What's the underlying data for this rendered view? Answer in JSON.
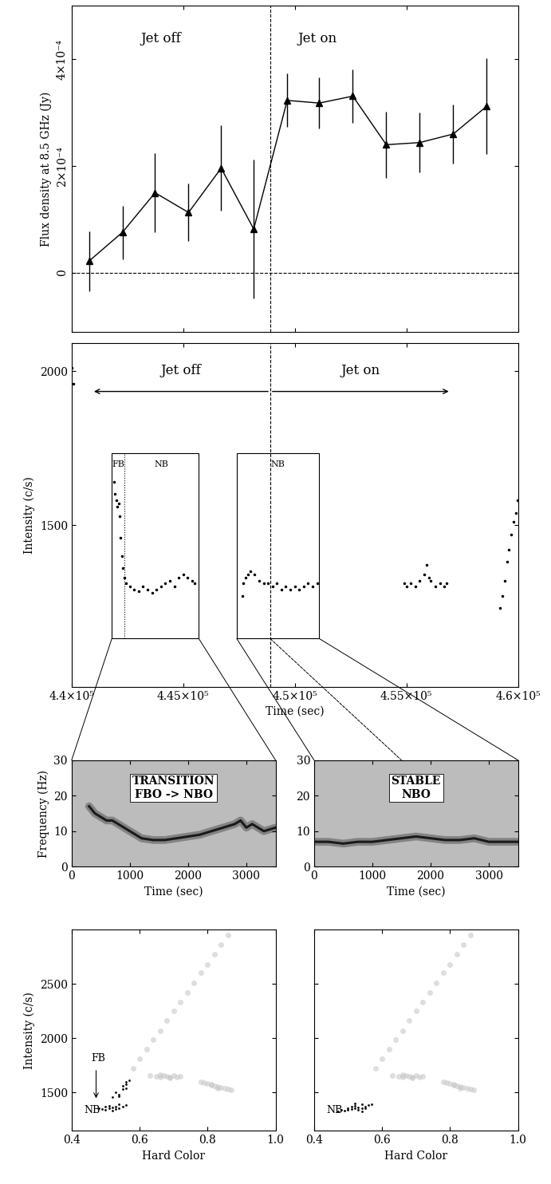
{
  "chart_data": [
    {
      "type": "errorbar_line",
      "ylabel": "Flux density at 8.5 GHz (Jy)",
      "color": "#000000",
      "marker": "^",
      "line_style": "solid",
      "x": [
        440780,
        442280,
        443740,
        445240,
        446700,
        448160,
        449660,
        451100,
        452600,
        454100,
        455600,
        457100,
        458600
      ],
      "values": [
        2.2e-05,
        7.6e-05,
        0.00015,
        0.000113,
        0.000196,
        8.2e-05,
        0.000323,
        0.000318,
        0.000331,
        0.00024,
        0.000244,
        0.00026,
        0.000312
      ],
      "errors": [
        5.6e-05,
        5e-05,
        7.4e-05,
        5.4e-05,
        8e-05,
        0.00013,
        5e-05,
        4.8e-05,
        5e-05,
        6.2e-05,
        5.6e-05,
        5.6e-05,
        9e-05
      ],
      "xlim": [
        440000,
        460000
      ],
      "xticks": [
        440000,
        445000,
        450000,
        455000,
        460000
      ],
      "ylim": [
        -0.00011,
        0.0005
      ],
      "yticks": [
        0,
        {
          "value": 0.0002,
          "label": "2×10⁻⁴"
        },
        {
          "value": 0.0004,
          "label": "4×10⁻⁴"
        }
      ],
      "tick_labels": "y",
      "vlines": [
        448900
      ],
      "hlines": [
        0
      ],
      "annotations": [
        "Jet off",
        "Jet on"
      ]
    },
    {
      "type": "scatter",
      "xlabel": "Time (sec)",
      "ylabel": "Intensity (c/s)",
      "color": "#000000",
      "marker": ".",
      "line_style": "none",
      "x": [
        440020,
        440060,
        null,
        441900,
        441950,
        442000,
        442050,
        442100,
        442150,
        442200,
        442250,
        442300,
        442350,
        442450,
        442600,
        442800,
        443000,
        443200,
        443400,
        443600,
        443800,
        444000,
        444200,
        444400,
        444600,
        444800,
        445000,
        445200,
        445400,
        445500,
        null,
        447650,
        447700,
        447800,
        447900,
        448000,
        448200,
        448400,
        448600,
        448800,
        449000,
        449200,
        449400,
        449600,
        449800,
        450000,
        450200,
        450400,
        450600,
        450800,
        451000,
        null,
        454900,
        455000,
        455200,
        455400,
        455600,
        455800,
        455900,
        456000,
        456100,
        456300,
        456500,
        456700,
        456800,
        null,
        459200,
        459300,
        459400,
        459500,
        459600,
        459700,
        459800,
        459900,
        459980
      ],
      "values": [
        2010,
        1960,
        null,
        1640,
        1600,
        1580,
        1560,
        1570,
        1530,
        1460,
        1400,
        1360,
        1330,
        1310,
        1300,
        1290,
        1285,
        1300,
        1290,
        1280,
        1290,
        1300,
        1310,
        1320,
        1300,
        1330,
        1340,
        1330,
        1320,
        1310,
        null,
        1270,
        1310,
        1330,
        1340,
        1350,
        1340,
        1320,
        1310,
        1310,
        1300,
        1310,
        1290,
        1300,
        1290,
        1300,
        1290,
        1300,
        1310,
        1300,
        1310,
        null,
        1310,
        1300,
        1310,
        1300,
        1320,
        1340,
        1370,
        1330,
        1320,
        1300,
        1310,
        1300,
        1310,
        null,
        1230,
        1270,
        1320,
        1380,
        1420,
        1470,
        1510,
        1540,
        1580
      ],
      "xlim": [
        440000,
        460000
      ],
      "xticks": [
        {
          "value": 440000,
          "label": "4.4×10⁵"
        },
        {
          "value": 445000,
          "label": "4.45×10⁵"
        },
        {
          "value": 450000,
          "label": "4.5×10⁵"
        },
        {
          "value": 455000,
          "label": "4.55×10⁵"
        },
        {
          "value": 460000,
          "label": "4.6×10⁵"
        }
      ],
      "ylim": [
        975,
        2090
      ],
      "yticks": [
        1500,
        2000
      ],
      "vlines": [
        448900
      ],
      "jet_arrows": [
        {
          "text": "Jet off",
          "to": 440900
        },
        {
          "text": "Jet on",
          "to": 457000
        }
      ],
      "windows": [
        {
          "start": 441800,
          "end": 445700,
          "labels": [
            "FB",
            "NB"
          ],
          "divider": 442350
        },
        {
          "start": 447400,
          "end": 451100,
          "labels": [
            "NB"
          ]
        }
      ]
    },
    {
      "type": "line",
      "xlabel": "Time (sec)",
      "ylabel": "Frequency (Hz)",
      "color": "#1a1a1a",
      "line_style": "solid",
      "x": [
        300,
        400,
        500,
        600,
        700,
        800,
        900,
        1000,
        1100,
        1200,
        1400,
        1600,
        1800,
        2000,
        2200,
        2400,
        2600,
        2800,
        2900,
        3000,
        3100,
        3200,
        3300,
        3500
      ],
      "values": [
        17,
        15,
        14,
        13,
        13,
        12,
        11,
        10,
        9,
        8,
        7.5,
        7.5,
        8,
        8.5,
        9,
        10,
        11,
        12,
        13,
        11,
        12,
        11,
        10,
        11
      ],
      "xlim": [
        0,
        3500
      ],
      "xticks": [
        0,
        1000,
        2000,
        3000
      ],
      "ylim": [
        0,
        30
      ],
      "yticks": [
        0,
        10,
        20,
        30
      ],
      "annotations": [
        "TRANSITION\nFBO -> NBO"
      ]
    },
    {
      "type": "line",
      "xlabel": "Time (sec)",
      "color": "#1a1a1a",
      "line_style": "solid",
      "x": [
        0,
        250,
        500,
        750,
        1000,
        1250,
        1500,
        1750,
        2000,
        2250,
        2500,
        2750,
        3000,
        3250,
        3500
      ],
      "values": [
        7,
        7,
        6.5,
        7,
        7,
        7.5,
        8,
        8.5,
        8,
        7.5,
        7.5,
        8,
        7,
        7,
        7
      ],
      "xlim": [
        0,
        3500
      ],
      "xticks": [
        0,
        1000,
        2000,
        3000
      ],
      "ylim": [
        0,
        30
      ],
      "yticks": [
        0,
        10,
        20,
        30
      ],
      "annotations": [
        "STABLE\nNBO"
      ]
    },
    {
      "type": "scatter",
      "xlabel": "Hard Color",
      "ylabel": "Intensity (c/s)",
      "xlim": [
        0.4,
        1.0
      ],
      "xticks": [
        0.4,
        0.6,
        0.8,
        1.0
      ],
      "ylim": [
        1150,
        3000
      ],
      "yticks": [
        1500,
        2000,
        2500
      ],
      "annotations": [
        "FB",
        "NB"
      ],
      "series": [
        {
          "color": "#c8c8c8",
          "marker": "o",
          "x": [
            0.58,
            0.6,
            0.62,
            0.64,
            0.66,
            0.68,
            0.7,
            0.72,
            0.74,
            0.76,
            0.78,
            0.8,
            0.82,
            0.84,
            0.86,
            0.63,
            0.65,
            0.66,
            0.67,
            0.68,
            0.69,
            0.7,
            0.71,
            0.72,
            0.66,
            0.69,
            0.78,
            0.79,
            0.8,
            0.81,
            0.82,
            0.83,
            0.84,
            0.85,
            0.86,
            0.87,
            0.81,
            0.83
          ],
          "values": [
            1720,
            1810,
            1900,
            1990,
            2070,
            2160,
            2250,
            2330,
            2420,
            2510,
            2600,
            2680,
            2770,
            2860,
            2950,
            1660,
            1650,
            1640,
            1660,
            1650,
            1640,
            1655,
            1645,
            1650,
            1665,
            1635,
            1600,
            1590,
            1585,
            1570,
            1560,
            1555,
            1545,
            1540,
            1530,
            1525,
            1580,
            1540
          ]
        },
        {
          "color": "#000000",
          "marker": ".",
          "x": [
            0.48,
            0.49,
            0.5,
            0.5,
            0.51,
            0.51,
            0.52,
            0.52,
            0.53,
            0.53,
            0.54,
            0.54,
            0.55,
            0.56,
            0.52,
            0.53,
            0.54,
            0.55,
            0.55,
            0.56,
            0.56,
            0.57,
            0.54,
            0.56
          ],
          "values": [
            1360,
            1350,
            1370,
            1340,
            1380,
            1355,
            1365,
            1335,
            1375,
            1350,
            1390,
            1360,
            1370,
            1385,
            1460,
            1500,
            1480,
            1530,
            1560,
            1600,
            1540,
            1610,
            1470,
            1580
          ]
        }
      ]
    },
    {
      "type": "scatter",
      "xlabel": "Hard Color",
      "xlim": [
        0.4,
        1.0
      ],
      "xticks": [
        0.4,
        0.6,
        0.8,
        1.0
      ],
      "ylim": [
        1150,
        3000
      ],
      "yticks": [
        1500,
        2000,
        2500
      ],
      "tick_labels": "x",
      "annotations": [
        "NB"
      ],
      "series": [
        {
          "color": "#c8c8c8",
          "marker": "o",
          "x": [
            0.58,
            0.6,
            0.62,
            0.64,
            0.66,
            0.68,
            0.7,
            0.72,
            0.74,
            0.76,
            0.78,
            0.8,
            0.82,
            0.84,
            0.86,
            0.63,
            0.65,
            0.66,
            0.67,
            0.68,
            0.69,
            0.7,
            0.71,
            0.72,
            0.66,
            0.69,
            0.78,
            0.79,
            0.8,
            0.81,
            0.82,
            0.83,
            0.84,
            0.85,
            0.86,
            0.87,
            0.81,
            0.83
          ],
          "values": [
            1720,
            1810,
            1900,
            1990,
            2070,
            2160,
            2250,
            2330,
            2420,
            2510,
            2600,
            2680,
            2770,
            2860,
            2950,
            1660,
            1650,
            1640,
            1660,
            1650,
            1640,
            1655,
            1645,
            1650,
            1665,
            1635,
            1600,
            1590,
            1585,
            1570,
            1560,
            1555,
            1545,
            1540,
            1530,
            1525,
            1580,
            1540
          ]
        },
        {
          "color": "#000000",
          "marker": ".",
          "x": [
            0.47,
            0.48,
            0.49,
            0.5,
            0.5,
            0.51,
            0.51,
            0.52,
            0.52,
            0.53,
            0.53,
            0.54,
            0.54,
            0.55,
            0.55,
            0.56,
            0.57,
            0.52,
            0.54
          ],
          "values": [
            1330,
            1345,
            1335,
            1360,
            1340,
            1370,
            1350,
            1380,
            1355,
            1365,
            1345,
            1390,
            1360,
            1375,
            1355,
            1385,
            1395,
            1400,
            1330
          ]
        }
      ]
    }
  ]
}
